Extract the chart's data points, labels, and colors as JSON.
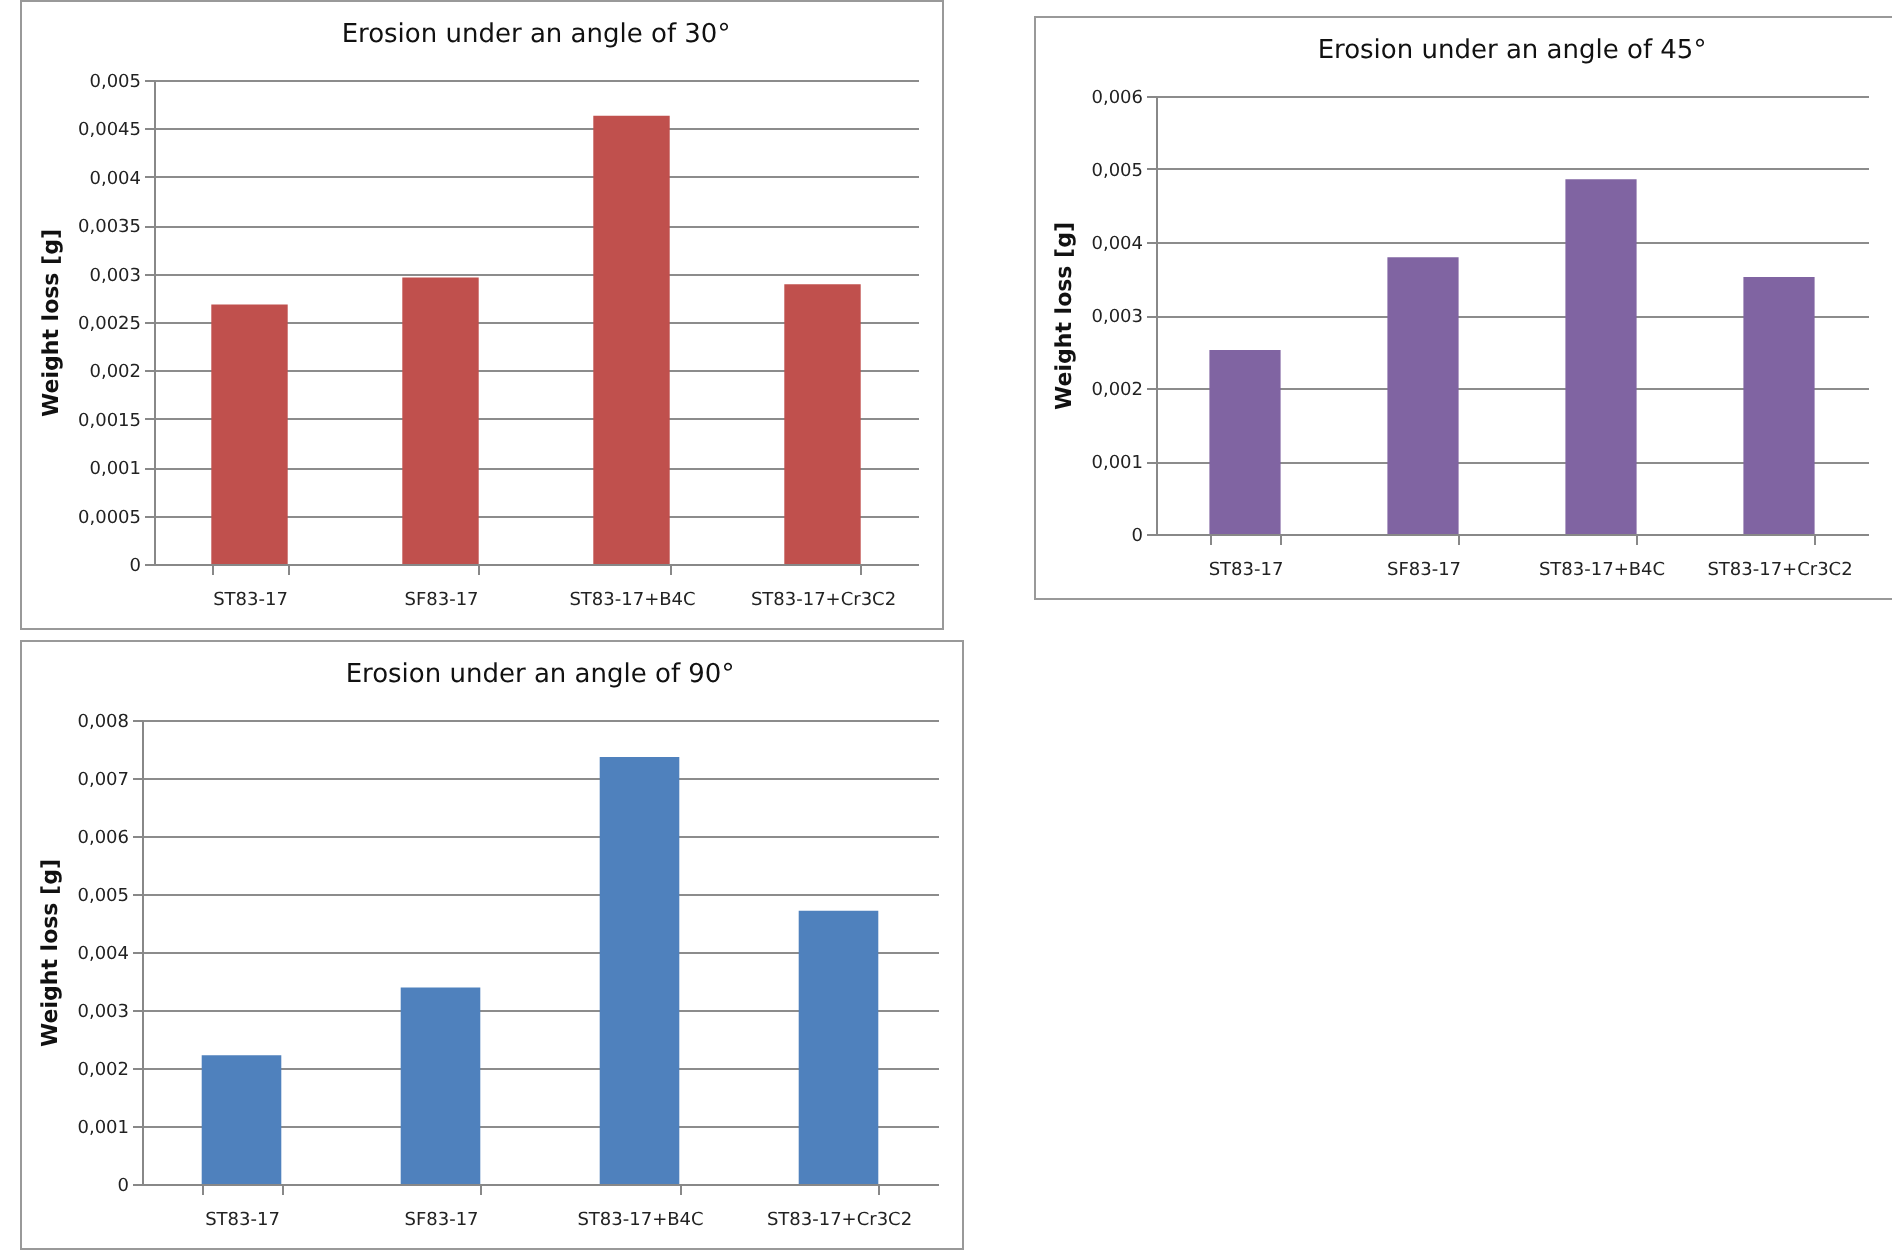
{
  "chart_data": [
    {
      "type": "bar",
      "title": "Erosion under an angle of 30°",
      "ylabel": "Weight loss [g]",
      "categories": [
        "ST83-17",
        "SF83-17",
        "ST83-17+B4C",
        "ST83-17+Cr3C2"
      ],
      "values": [
        0.00268,
        0.00296,
        0.00463,
        0.00289
      ],
      "color": "#c0504d",
      "ylim": [
        0,
        0.005
      ],
      "yticks": [
        {
          "value": 0,
          "label": "0"
        },
        {
          "value": 0.0005,
          "label": "0,0005"
        },
        {
          "value": 0.001,
          "label": "0,001"
        },
        {
          "value": 0.0015,
          "label": "0,0015"
        },
        {
          "value": 0.002,
          "label": "0,002"
        },
        {
          "value": 0.0025,
          "label": "0,0025"
        },
        {
          "value": 0.003,
          "label": "0,003"
        },
        {
          "value": 0.0035,
          "label": "0,0035"
        },
        {
          "value": 0.004,
          "label": "0,004"
        },
        {
          "value": 0.0045,
          "label": "0,0045"
        },
        {
          "value": 0.005,
          "label": "0,005"
        }
      ],
      "grid": "y"
    },
    {
      "type": "bar",
      "title": "Erosion under an angle of 45°",
      "ylabel": "Weight loss [g]",
      "categories": [
        "ST83-17",
        "SF83-17",
        "ST83-17+B4C",
        "ST83-17+Cr3C2"
      ],
      "values": [
        0.00252,
        0.00379,
        0.00486,
        0.00352
      ],
      "color": "#8064a2",
      "ylim": [
        0,
        0.006
      ],
      "yticks": [
        {
          "value": 0,
          "label": "0"
        },
        {
          "value": 0.001,
          "label": "0,001"
        },
        {
          "value": 0.002,
          "label": "0,002"
        },
        {
          "value": 0.003,
          "label": "0,003"
        },
        {
          "value": 0.004,
          "label": "0,004"
        },
        {
          "value": 0.005,
          "label": "0,005"
        },
        {
          "value": 0.006,
          "label": "0,006"
        }
      ],
      "grid": "y"
    },
    {
      "type": "bar",
      "title": "Erosion under an angle of 90°",
      "ylabel": "Weight loss [g]",
      "categories": [
        "ST83-17",
        "SF83-17",
        "ST83-17+B4C",
        "ST83-17+Cr3C2"
      ],
      "values": [
        0.00222,
        0.00339,
        0.00736,
        0.00471
      ],
      "color": "#4f81bd",
      "ylim": [
        0,
        0.008
      ],
      "yticks": [
        {
          "value": 0,
          "label": "0"
        },
        {
          "value": 0.001,
          "label": "0,001"
        },
        {
          "value": 0.002,
          "label": "0,002"
        },
        {
          "value": 0.003,
          "label": "0,003"
        },
        {
          "value": 0.004,
          "label": "0,004"
        },
        {
          "value": 0.005,
          "label": "0,005"
        },
        {
          "value": 0.006,
          "label": "0,006"
        },
        {
          "value": 0.007,
          "label": "0,007"
        },
        {
          "value": 0.008,
          "label": "0,008"
        }
      ],
      "grid": "y"
    }
  ]
}
